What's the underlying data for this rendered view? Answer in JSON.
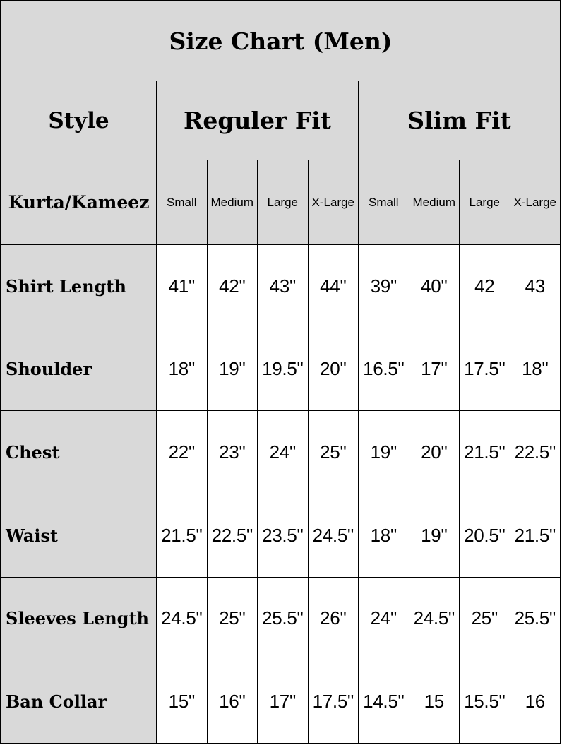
{
  "title": "Size Chart (Men)",
  "style_label": "Style",
  "fits": [
    "Reguler Fit",
    "Slim Fit"
  ],
  "garment_label": "Kurta/Kameez",
  "sizes": [
    "Small",
    "Medium",
    "Large",
    "X-Large",
    "Small",
    "Medium",
    "Large",
    "X-Large"
  ],
  "rows": [
    {
      "label": "Shirt Length",
      "values": [
        "41\"",
        "42\"",
        "43\"",
        "44\"",
        "39\"",
        "40\"",
        "42",
        "43"
      ]
    },
    {
      "label": "Shoulder",
      "values": [
        "18\"",
        "19\"",
        "19.5\"",
        "20\"",
        "16.5\"",
        "17\"",
        "17.5\"",
        "18\""
      ]
    },
    {
      "label": "Chest",
      "values": [
        "22\"",
        "23\"",
        "24\"",
        "25\"",
        "19\"",
        "20\"",
        "21.5\"",
        "22.5\""
      ]
    },
    {
      "label": "Waist",
      "values": [
        "21.5\"",
        "22.5\"",
        "23.5\"",
        "24.5\"",
        "18\"",
        "19\"",
        "20.5\"",
        "21.5\""
      ]
    },
    {
      "label": "Sleeves Length",
      "values": [
        "24.5\"",
        "25\"",
        "25.5\"",
        "26\"",
        "24\"",
        "24.5\"",
        "25\"",
        "25.5\""
      ]
    },
    {
      "label": "Ban Collar",
      "values": [
        "15\"",
        "16\"",
        "17\"",
        "17.5\"",
        "14.5\"",
        "15",
        "15.5\"",
        "16"
      ]
    }
  ],
  "colors": {
    "header_bg": "#d9d9d9",
    "cell_bg": "#ffffff",
    "border": "#000000"
  }
}
